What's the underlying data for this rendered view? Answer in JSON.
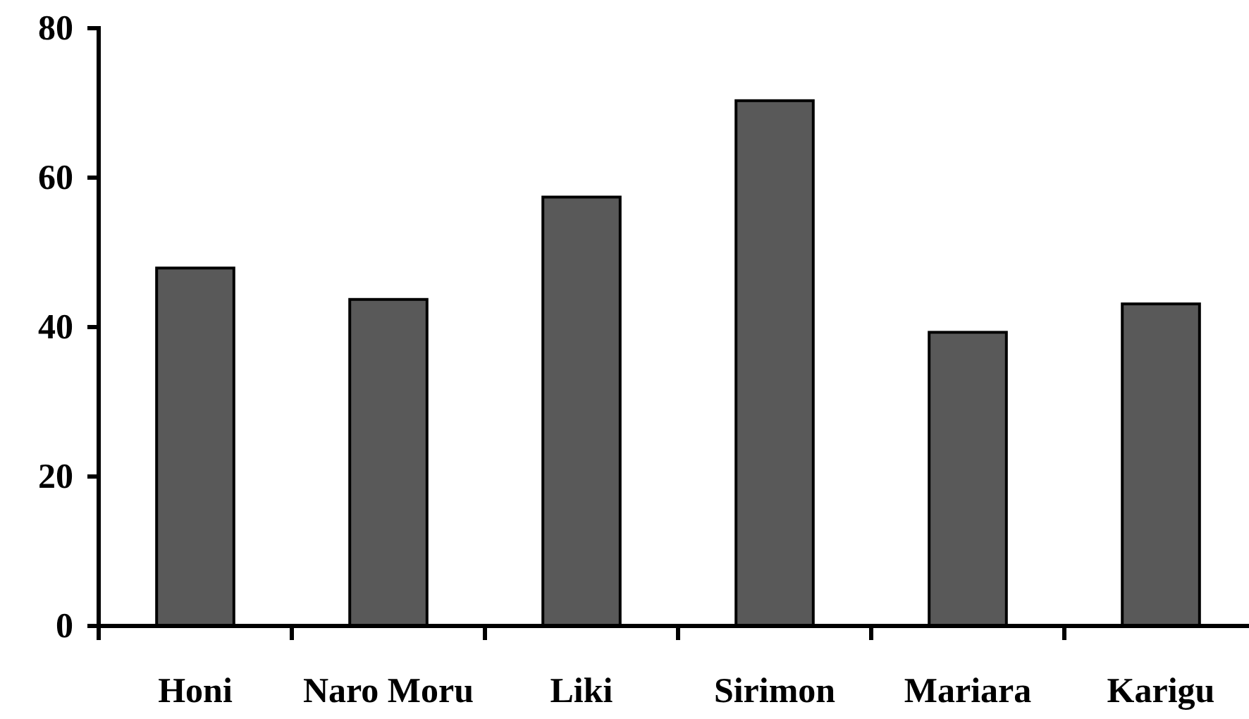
{
  "chart_data": {
    "type": "bar",
    "categories": [
      "Honi",
      "Naro Moru",
      "Liki",
      "Sirimon",
      "Mariara",
      "Karigu"
    ],
    "values": [
      47.9,
      43.7,
      57.4,
      70.3,
      39.3,
      43.1
    ],
    "color": "#595959",
    "ylim": [
      0,
      80
    ],
    "yticks": [
      0,
      20,
      40,
      60,
      80
    ]
  }
}
